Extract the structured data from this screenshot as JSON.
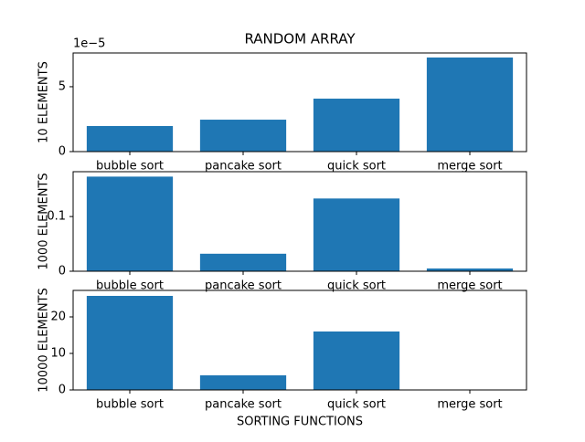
{
  "chart_data": [
    {
      "type": "bar",
      "title": "RANDOM ARRAY",
      "ylabel": "10 ELEMENTS",
      "y_offset_label": "1e−5",
      "categories": [
        "bubble sort",
        "pancake sort",
        "quick sort",
        "merge sort"
      ],
      "values": [
        1.97,
        2.46,
        4.08,
        7.25
      ],
      "color": "#1f77b4",
      "ylim": [
        0,
        7.6
      ],
      "yticks": [
        0,
        5
      ]
    },
    {
      "type": "bar",
      "ylabel": "1000 ELEMENTS",
      "categories": [
        "bubble sort",
        "pancake sort",
        "quick sort",
        "merge sort"
      ],
      "values": [
        0.173,
        0.032,
        0.133,
        0.005
      ],
      "color": "#1f77b4",
      "ylim": [
        0,
        0.182
      ],
      "yticks": [
        0.0,
        0.1
      ]
    },
    {
      "type": "bar",
      "ylabel": "10000 ELEMENTS",
      "xlabel": "SORTING FUNCTIONS",
      "categories": [
        "bubble sort",
        "pancake sort",
        "quick sort",
        "merge sort"
      ],
      "values": [
        25.75,
        4.0,
        16.0,
        0.05
      ],
      "color": "#1f77b4",
      "ylim": [
        0,
        27.25
      ],
      "yticks": [
        0,
        10,
        20
      ]
    }
  ]
}
